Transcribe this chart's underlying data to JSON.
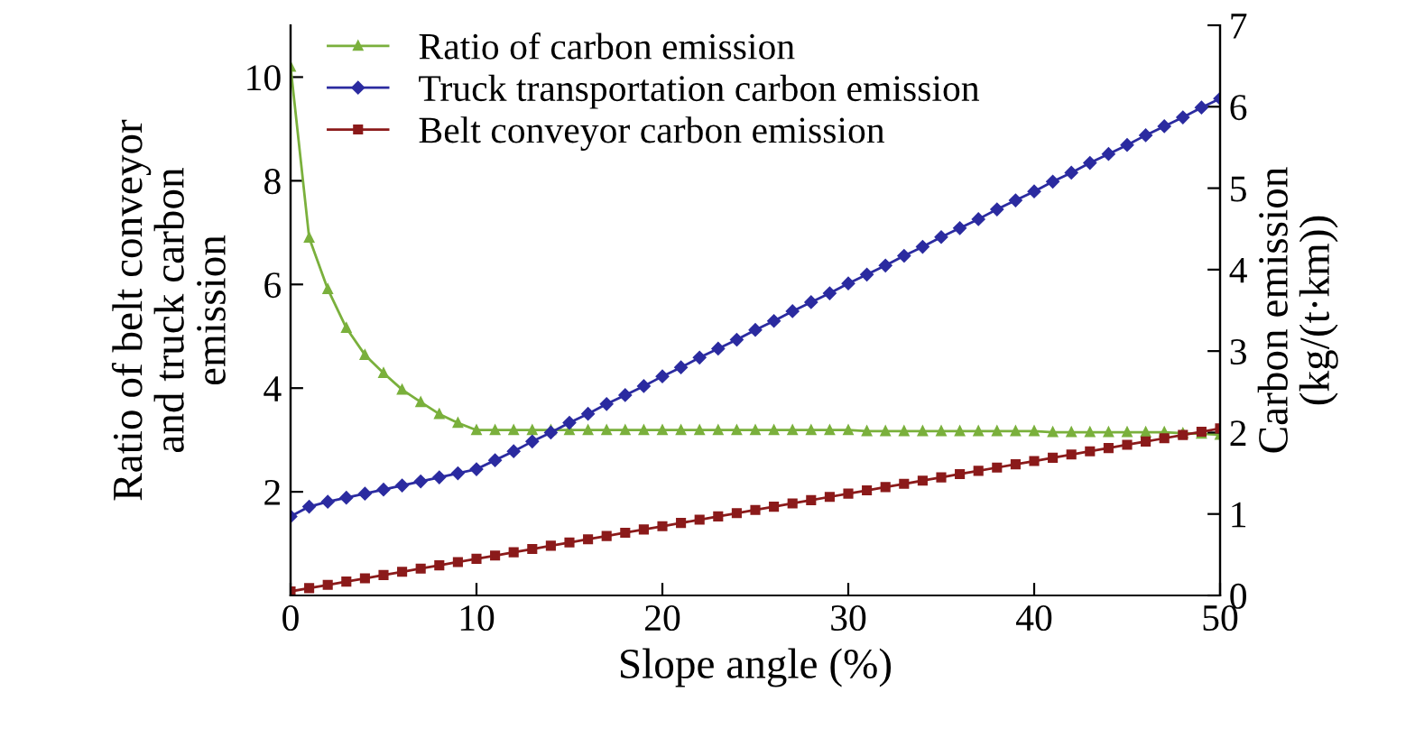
{
  "chart_data": {
    "type": "line",
    "xlabel": "Slope angle (%)",
    "ylabel": "Ratio of belt conveyor\nand truck carbon\nemission",
    "y2label": "Carbon emission\n(kg/(t·km))",
    "x": [
      0,
      1,
      2,
      3,
      4,
      5,
      6,
      7,
      8,
      9,
      10,
      11,
      12,
      13,
      14,
      15,
      16,
      17,
      18,
      19,
      20,
      21,
      22,
      23,
      24,
      25,
      26,
      27,
      28,
      29,
      30,
      31,
      32,
      33,
      34,
      35,
      36,
      37,
      38,
      39,
      40,
      41,
      42,
      43,
      44,
      45,
      46,
      47,
      48,
      49,
      50
    ],
    "xlim": [
      0,
      50
    ],
    "xticks": [
      0,
      10,
      20,
      30,
      40,
      50
    ],
    "ylim": [
      0,
      11
    ],
    "yticks": [
      2,
      4,
      6,
      8,
      10
    ],
    "y2lim": [
      0,
      7
    ],
    "y2ticks": [
      0,
      1,
      2,
      3,
      4,
      5,
      6,
      7
    ],
    "grid": false,
    "legend": "top left",
    "series": [
      {
        "name": "Ratio of carbon emission",
        "color": "#7ab03c",
        "marker": "triangle",
        "values": [
          10.2,
          6.9,
          5.91,
          5.16,
          4.64,
          4.29,
          3.97,
          3.73,
          3.5,
          3.33,
          3.19,
          3.19,
          3.19,
          3.19,
          3.19,
          3.19,
          3.19,
          3.19,
          3.19,
          3.19,
          3.19,
          3.19,
          3.19,
          3.19,
          3.19,
          3.19,
          3.19,
          3.19,
          3.19,
          3.19,
          3.19,
          3.17,
          3.17,
          3.17,
          3.17,
          3.17,
          3.17,
          3.17,
          3.17,
          3.17,
          3.17,
          3.15,
          3.15,
          3.15,
          3.15,
          3.15,
          3.15,
          3.15,
          3.13,
          3.12,
          3.1
        ]
      },
      {
        "name": "Truck transportation carbon emission",
        "color": "#2b2ba0",
        "marker": "diamond",
        "axis": "y2",
        "values": [
          0.97,
          1.09,
          1.15,
          1.2,
          1.25,
          1.3,
          1.35,
          1.4,
          1.45,
          1.5,
          1.55,
          1.66,
          1.77,
          1.89,
          2.0,
          2.12,
          2.23,
          2.35,
          2.46,
          2.57,
          2.69,
          2.8,
          2.92,
          3.03,
          3.14,
          3.26,
          3.37,
          3.49,
          3.6,
          3.71,
          3.83,
          3.94,
          4.05,
          4.17,
          4.28,
          4.4,
          4.51,
          4.62,
          4.74,
          4.85,
          4.96,
          5.08,
          5.19,
          5.31,
          5.42,
          5.53,
          5.65,
          5.76,
          5.87,
          5.99,
          6.1
        ]
      },
      {
        "name": "Belt conveyor carbon emission",
        "color": "#8b1a1a",
        "marker": "square",
        "axis": "y2",
        "values": [
          0.05,
          0.09,
          0.13,
          0.17,
          0.21,
          0.25,
          0.29,
          0.33,
          0.37,
          0.41,
          0.45,
          0.49,
          0.53,
          0.57,
          0.61,
          0.65,
          0.69,
          0.73,
          0.77,
          0.81,
          0.85,
          0.89,
          0.93,
          0.97,
          1.01,
          1.05,
          1.09,
          1.13,
          1.17,
          1.21,
          1.25,
          1.29,
          1.33,
          1.37,
          1.41,
          1.45,
          1.49,
          1.53,
          1.57,
          1.61,
          1.65,
          1.69,
          1.73,
          1.77,
          1.81,
          1.85,
          1.89,
          1.93,
          1.97,
          2.01,
          2.05
        ]
      }
    ]
  }
}
